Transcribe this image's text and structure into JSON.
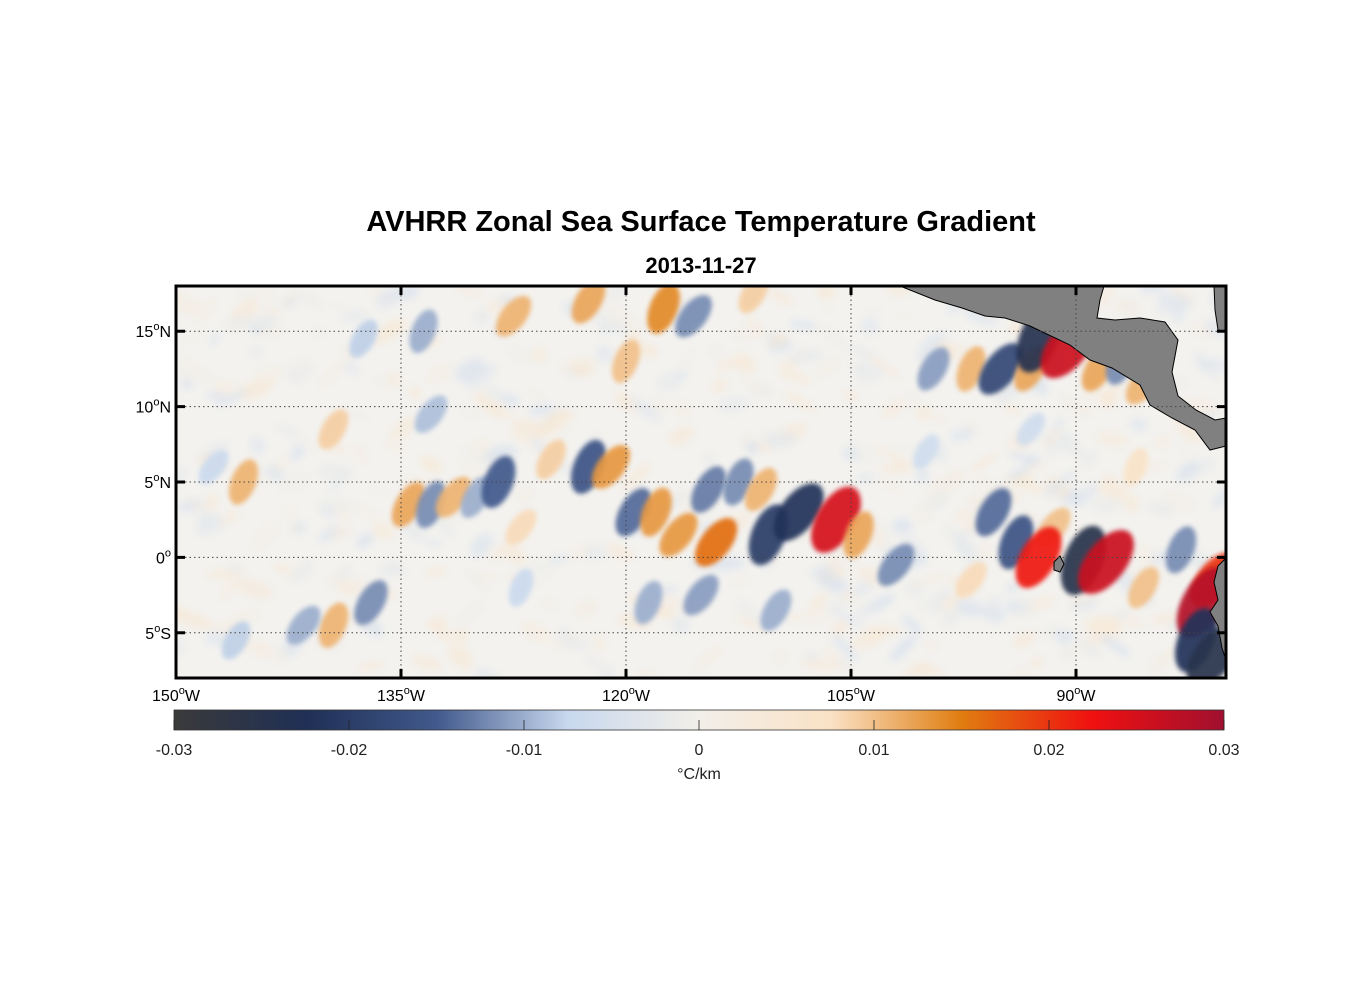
{
  "title": "AVHRR Zonal Sea Surface Temperature Gradient",
  "subtitle": "2013-11-27",
  "map": {
    "lon_range": [
      -150,
      -80
    ],
    "lat_range": [
      -8,
      18
    ],
    "lon_ticks": [
      {
        "value": -150,
        "label": "150",
        "hemi": "W"
      },
      {
        "value": -135,
        "label": "135",
        "hemi": "W"
      },
      {
        "value": -120,
        "label": "120",
        "hemi": "W"
      },
      {
        "value": -105,
        "label": "105",
        "hemi": "W"
      },
      {
        "value": -90,
        "label": "90",
        "hemi": "W"
      }
    ],
    "lat_ticks": [
      {
        "value": 15,
        "label": "15",
        "hemi": "N"
      },
      {
        "value": 10,
        "label": "10",
        "hemi": "N"
      },
      {
        "value": 5,
        "label": "5",
        "hemi": "N"
      },
      {
        "value": 0,
        "label": "0",
        "hemi": ""
      },
      {
        "value": -5,
        "label": "5",
        "hemi": "S"
      }
    ],
    "degree_symbol": "o",
    "land_color": "#808080",
    "grid": "dotted"
  },
  "colorbar": {
    "min": -0.03,
    "max": 0.03,
    "ticks": [
      "-0.03",
      "-0.02",
      "-0.01",
      "0",
      "0.01",
      "0.02",
      "0.03"
    ],
    "unit_label": "°C/km",
    "colors": [
      "#3a3a3a",
      "#1f2f55",
      "#41598c",
      "#c8d8ee",
      "#f2efe9",
      "#fae2c6",
      "#e07d10",
      "#f01010",
      "#a01030"
    ]
  },
  "features": [
    {
      "lon": -137.5,
      "lat": 14.5,
      "v": -0.008
    },
    {
      "lon": -133.5,
      "lat": 15.0,
      "v": -0.01
    },
    {
      "lon": -127.5,
      "lat": 16.0,
      "v": 0.011
    },
    {
      "lon": -122.5,
      "lat": 17.0,
      "v": 0.012
    },
    {
      "lon": -117.5,
      "lat": 16.5,
      "v": 0.014
    },
    {
      "lon": -115.5,
      "lat": 16.0,
      "v": -0.012
    },
    {
      "lon": -111.5,
      "lat": 17.5,
      "v": 0.009
    },
    {
      "lon": -120.0,
      "lat": 13.0,
      "v": 0.01
    },
    {
      "lon": -133.0,
      "lat": 9.5,
      "v": -0.009
    },
    {
      "lon": -139.5,
      "lat": 8.5,
      "v": 0.009
    },
    {
      "lon": -145.5,
      "lat": 5.0,
      "v": 0.011
    },
    {
      "lon": -147.5,
      "lat": 6.0,
      "v": -0.007
    },
    {
      "lon": -134.5,
      "lat": 3.5,
      "v": 0.012
    },
    {
      "lon": -133.0,
      "lat": 3.5,
      "v": -0.012
    },
    {
      "lon": -131.5,
      "lat": 4.0,
      "v": 0.011
    },
    {
      "lon": -130.0,
      "lat": 4.0,
      "v": -0.01
    },
    {
      "lon": -128.5,
      "lat": 5.0,
      "v": -0.015
    },
    {
      "lon": -127.0,
      "lat": 2.0,
      "v": 0.008
    },
    {
      "lon": -125.0,
      "lat": 6.5,
      "v": 0.009
    },
    {
      "lon": -122.5,
      "lat": 6.0,
      "v": -0.016
    },
    {
      "lon": -121.0,
      "lat": 6.0,
      "v": 0.013
    },
    {
      "lon": -119.5,
      "lat": 3.0,
      "v": -0.014
    },
    {
      "lon": -118.0,
      "lat": 3.0,
      "v": 0.013
    },
    {
      "lon": -116.5,
      "lat": 1.5,
      "v": 0.013
    },
    {
      "lon": -114.5,
      "lat": 4.5,
      "v": -0.013
    },
    {
      "lon": -112.5,
      "lat": 5.0,
      "v": -0.012
    },
    {
      "lon": -114.0,
      "lat": 1.0,
      "v": 0.016
    },
    {
      "lon": -111.0,
      "lat": 4.5,
      "v": 0.011
    },
    {
      "lon": -110.5,
      "lat": 1.5,
      "v": -0.02
    },
    {
      "lon": -108.5,
      "lat": 3.0,
      "v": -0.022
    },
    {
      "lon": -106.0,
      "lat": 2.5,
      "v": 0.025
    },
    {
      "lon": -104.5,
      "lat": 1.5,
      "v": 0.012
    },
    {
      "lon": -102.0,
      "lat": -0.5,
      "v": -0.012
    },
    {
      "lon": -99.5,
      "lat": 12.5,
      "v": -0.011
    },
    {
      "lon": -97.0,
      "lat": 12.5,
      "v": 0.011
    },
    {
      "lon": -95.0,
      "lat": 12.5,
      "v": -0.018
    },
    {
      "lon": -93.0,
      "lat": 12.5,
      "v": 0.012
    },
    {
      "lon": -92.5,
      "lat": 14.5,
      "v": -0.024
    },
    {
      "lon": -90.5,
      "lat": 14.0,
      "v": 0.026
    },
    {
      "lon": -88.5,
      "lat": 12.5,
      "v": 0.012
    },
    {
      "lon": -87.0,
      "lat": 13.0,
      "v": -0.012
    },
    {
      "lon": -85.5,
      "lat": 11.5,
      "v": 0.011
    },
    {
      "lon": -95.5,
      "lat": 3.0,
      "v": -0.014
    },
    {
      "lon": -94.0,
      "lat": 1.0,
      "v": -0.016
    },
    {
      "lon": -91.5,
      "lat": 2.0,
      "v": 0.01
    },
    {
      "lon": -92.5,
      "lat": 0.0,
      "v": 0.022
    },
    {
      "lon": -89.5,
      "lat": -0.2,
      "v": -0.025
    },
    {
      "lon": -88.0,
      "lat": -0.3,
      "v": 0.026
    },
    {
      "lon": -85.5,
      "lat": -2.0,
      "v": 0.01
    },
    {
      "lon": -83.0,
      "lat": 0.5,
      "v": -0.012
    },
    {
      "lon": -80.8,
      "lat": -1.5,
      "v": 0.02
    },
    {
      "lon": -81.5,
      "lat": -3.0,
      "v": 0.028
    },
    {
      "lon": -82.0,
      "lat": -5.5,
      "v": -0.022
    },
    {
      "lon": -80.8,
      "lat": -6.5,
      "v": -0.025
    },
    {
      "lon": -137.0,
      "lat": -3.0,
      "v": -0.012
    },
    {
      "lon": -139.5,
      "lat": -4.5,
      "v": 0.011
    },
    {
      "lon": -141.5,
      "lat": -4.5,
      "v": -0.01
    },
    {
      "lon": -146.0,
      "lat": -5.5,
      "v": -0.008
    },
    {
      "lon": -118.5,
      "lat": -3.0,
      "v": -0.01
    },
    {
      "lon": -115.0,
      "lat": -2.5,
      "v": -0.011
    },
    {
      "lon": -110.0,
      "lat": -3.5,
      "v": -0.01
    },
    {
      "lon": -127.0,
      "lat": -2.0,
      "v": -0.007
    },
    {
      "lon": -97.0,
      "lat": -1.5,
      "v": 0.008
    },
    {
      "lon": -100.0,
      "lat": 7.0,
      "v": -0.006
    },
    {
      "lon": -86.0,
      "lat": 6.0,
      "v": 0.007
    },
    {
      "lon": -93.0,
      "lat": 8.5,
      "v": -0.006
    }
  ]
}
